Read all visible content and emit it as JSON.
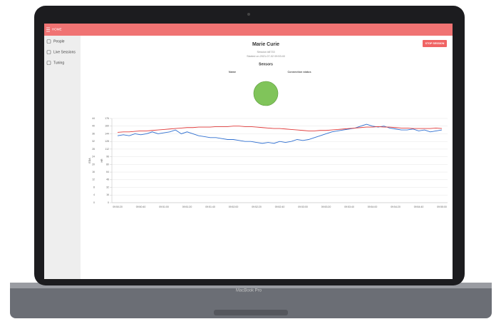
{
  "device_label": "MacBook Pro",
  "header": {
    "title": "HOME"
  },
  "sidebar": {
    "items": [
      "People",
      "Live Sessions",
      "Tuning"
    ]
  },
  "session": {
    "name": "Marie Curie",
    "id": "Session #8733",
    "started": "Started on 2021-07-02 09:53:40",
    "button": "STOP SESSION"
  },
  "sensors": {
    "title": "Sensors",
    "columns": [
      "Name",
      "Connection status"
    ]
  },
  "chart_data": {
    "type": "line",
    "categories": [
      "09:50:20",
      null,
      null,
      null,
      "09:50:40",
      null,
      null,
      null,
      "09:51:00",
      null,
      null,
      null,
      "09:51:20",
      null,
      null,
      null,
      "09:51:40",
      null,
      null,
      null,
      "09:52:00",
      null,
      null,
      null,
      "09:52:20",
      null,
      null,
      null,
      "09:52:40",
      null,
      null,
      null,
      "09:53:00",
      null,
      null,
      null,
      "09:53:20",
      null,
      null,
      null,
      "09:53:40",
      null,
      null,
      null,
      "09:54:00",
      null,
      null,
      null,
      "09:54:20",
      null,
      null,
      null,
      "09:54:40",
      null,
      null,
      null,
      "09:55:00"
    ],
    "ylabel": "EDA",
    "y2label": "HR",
    "ylim": [
      0,
      44
    ],
    "yticks": [
      0,
      4,
      8,
      12,
      16,
      20,
      24,
      28,
      32,
      36,
      40,
      44
    ],
    "y2lim": [
      0,
      176
    ],
    "y2ticks": [
      0,
      16,
      32,
      48,
      64,
      80,
      96,
      112,
      128,
      144,
      160,
      176
    ],
    "grid": true,
    "series": [
      {
        "color": "#2f6fd0",
        "values": [
          35,
          35.5,
          35,
          36,
          35.5,
          36,
          37,
          36,
          36.5,
          37,
          38,
          36,
          37,
          36,
          35,
          34.5,
          34,
          34,
          33.5,
          33,
          33,
          32.5,
          32,
          32,
          31.5,
          31,
          31.5,
          31,
          32,
          31.5,
          32,
          33,
          32.5,
          33,
          34,
          35,
          36,
          37,
          37.5,
          38,
          38.5,
          39,
          40,
          41,
          40,
          39.5,
          40,
          39,
          38.5,
          38,
          38,
          38.5,
          37.5,
          38,
          37,
          37.5,
          38
        ]
      },
      {
        "color": "#e03a3a",
        "axis": "y2",
        "values": [
          147,
          148,
          148,
          149,
          150,
          150,
          151,
          152,
          153,
          154,
          155,
          156,
          157,
          157,
          158,
          158,
          158,
          159,
          159,
          159,
          160,
          160,
          159,
          159,
          158,
          157,
          156,
          155,
          155,
          154,
          153,
          152,
          151,
          150,
          150,
          151,
          151,
          152,
          153,
          154,
          155,
          156,
          157,
          158,
          158,
          159,
          158,
          158,
          157,
          156,
          156,
          155,
          155,
          155,
          155,
          156,
          155
        ]
      }
    ]
  }
}
